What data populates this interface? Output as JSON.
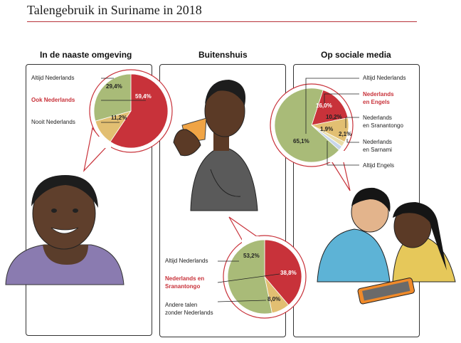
{
  "title": "Talengebruik in Suriname in 2018",
  "colors": {
    "red": "#c8323a",
    "green": "#a9bb78",
    "yellow": "#e2bf72",
    "blue": "#c8d6ea",
    "accent_rule": "#b8333a"
  },
  "chart_data": [
    {
      "type": "pie",
      "title": "In de naaste omgeving",
      "slices": [
        {
          "label": "Altijd Nederlands",
          "value": 29.4,
          "value_text": "29,4%",
          "color": "#a9bb78"
        },
        {
          "label": "Ook Nederlands",
          "value": 59.4,
          "value_text": "59,4%",
          "color": "#c8323a",
          "highlight": true
        },
        {
          "label": "Nooit Nederlands",
          "value": 11.2,
          "value_text": "11,2%",
          "color": "#e2bf72"
        }
      ]
    },
    {
      "type": "pie",
      "title": "Buitenshuis",
      "slices": [
        {
          "label": "Altijd Nederlands",
          "value": 53.2,
          "value_text": "53,2%",
          "color": "#a9bb78"
        },
        {
          "label": "Nederlands en Sranantongo",
          "label_lines": [
            "Nederlands en",
            "Sranantongo"
          ],
          "value": 38.8,
          "value_text": "38,8%",
          "color": "#c8323a",
          "highlight": true
        },
        {
          "label": "Andere talen zonder Nederlands",
          "label_lines": [
            "Andere talen",
            "zonder Nederlands"
          ],
          "value": 8.0,
          "value_text": "8,0%",
          "color": "#e2bf72"
        }
      ]
    },
    {
      "type": "pie",
      "title": "Op sociale media",
      "slices": [
        {
          "label": "Altijd Nederlands",
          "value": 65.1,
          "value_text": "65,1%",
          "color": "#a9bb78"
        },
        {
          "label": "Nederlands en Engels",
          "label_lines": [
            "Nederlands",
            "en Engels"
          ],
          "value": 16.0,
          "value_text": "16,0%",
          "color": "#c8323a",
          "highlight": true
        },
        {
          "label": "Nederlands en Sranantongo",
          "label_lines": [
            "Nederlands",
            "en Sranantongo"
          ],
          "value": 10.2,
          "value_text": "10,2%",
          "color": "#e2bf72"
        },
        {
          "label": "Nederlands en Sarnami",
          "label_lines": [
            "Nederlands",
            "en Sarnami"
          ],
          "value": 2.1,
          "value_text": "2,1%",
          "color": "#e9dca8"
        },
        {
          "label": "Altijd Engels",
          "value": 1.9,
          "value_text": "1,9%",
          "color": "#c8d6ea"
        }
      ]
    }
  ]
}
